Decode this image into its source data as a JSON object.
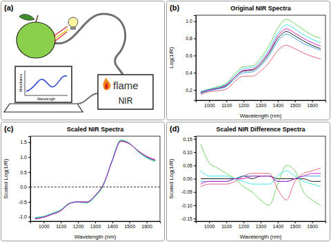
{
  "diagram": {
    "label": "(a)",
    "device_brand": "flame",
    "device_type": "NIR",
    "screen_y_label": "Absorbance",
    "screen_x_label": "Wavelength"
  },
  "chart_data": [
    {
      "type": "line",
      "panel_label": "(b)",
      "title": "Original NIR Spectra",
      "x_label": "Wavelength (nm)",
      "y_label": "Log(1/R)",
      "x": [
        950,
        1000,
        1050,
        1100,
        1150,
        1200,
        1250,
        1300,
        1350,
        1400,
        1450,
        1500,
        1550,
        1600,
        1650
      ],
      "xlim": [
        922,
        1678
      ],
      "xticks": [
        1000,
        1100,
        1200,
        1300,
        1400,
        1500,
        1600
      ],
      "ylim": [
        0.08,
        1.07
      ],
      "yticks": [
        0.2,
        0.4,
        0.6,
        0.8,
        {
          "value": 1,
          "label": "1.0"
        }
      ],
      "series": [
        {
          "color": "#000000",
          "values": [
            0.17,
            0.2,
            0.22,
            0.25,
            0.35,
            0.42,
            0.43,
            0.5,
            0.63,
            0.8,
            0.88,
            0.83,
            0.77,
            0.72,
            0.68
          ]
        },
        {
          "color": "#DF536B",
          "values": [
            0.15,
            0.18,
            0.19,
            0.21,
            0.3,
            0.36,
            0.36,
            0.42,
            0.52,
            0.66,
            0.72,
            0.68,
            0.63,
            0.59,
            0.56
          ]
        },
        {
          "color": "#61D04F",
          "values": [
            0.18,
            0.21,
            0.24,
            0.28,
            0.39,
            0.47,
            0.48,
            0.57,
            0.72,
            0.92,
            1.02,
            0.97,
            0.9,
            0.84,
            0.8
          ]
        },
        {
          "color": "#2297E6",
          "values": [
            0.16,
            0.19,
            0.21,
            0.24,
            0.33,
            0.4,
            0.41,
            0.48,
            0.6,
            0.77,
            0.85,
            0.8,
            0.74,
            0.7,
            0.66
          ]
        },
        {
          "color": "#28E2E5",
          "values": [
            0.18,
            0.21,
            0.23,
            0.27,
            0.37,
            0.45,
            0.46,
            0.54,
            0.68,
            0.86,
            0.96,
            0.91,
            0.84,
            0.79,
            0.75
          ]
        },
        {
          "color": "#CD0BBC",
          "values": [
            0.17,
            0.2,
            0.22,
            0.26,
            0.35,
            0.43,
            0.44,
            0.52,
            0.65,
            0.83,
            0.91,
            0.86,
            0.8,
            0.75,
            0.71
          ]
        }
      ]
    },
    {
      "type": "line",
      "panel_label": "(c)",
      "title": "Scaled NIR Spectra",
      "x_label": "Wavelength (nm)",
      "y_label": "Scaled Log(1/R)",
      "x": [
        950,
        1000,
        1050,
        1100,
        1150,
        1200,
        1250,
        1300,
        1350,
        1400,
        1450,
        1500,
        1550,
        1600,
        1650
      ],
      "xlim": [
        922,
        1678
      ],
      "xticks": [
        1000,
        1100,
        1200,
        1300,
        1400,
        1500,
        1600
      ],
      "ylim": [
        -1.15,
        1.7
      ],
      "yticks": [
        {
          "value": -1,
          "label": "-1.0"
        },
        -0.5,
        {
          "value": 0,
          "label": "0.0"
        },
        0.5,
        {
          "value": 1,
          "label": "1.0"
        },
        1.5
      ],
      "hline": 0,
      "series": [
        {
          "color": "#000000",
          "values": [
            -1.05,
            -1.0,
            -0.9,
            -0.78,
            -0.55,
            -0.5,
            -0.52,
            -0.3,
            0.1,
            0.9,
            1.55,
            1.45,
            1.2,
            1.0,
            0.88
          ]
        },
        {
          "color": "#DF536B",
          "values": [
            -1.08,
            -1.02,
            -0.92,
            -0.8,
            -0.56,
            -0.49,
            -0.5,
            -0.28,
            0.12,
            0.88,
            1.52,
            1.44,
            1.22,
            1.03,
            0.92
          ]
        },
        {
          "color": "#61D04F",
          "values": [
            -1.02,
            -0.98,
            -0.88,
            -0.76,
            -0.54,
            -0.51,
            -0.54,
            -0.33,
            0.07,
            0.92,
            1.58,
            1.47,
            1.18,
            0.97,
            0.85
          ]
        },
        {
          "color": "#2297E6",
          "values": [
            -1.06,
            -1.01,
            -0.91,
            -0.79,
            -0.55,
            -0.5,
            -0.51,
            -0.29,
            0.11,
            0.89,
            1.54,
            1.45,
            1.21,
            1.01,
            0.89
          ]
        },
        {
          "color": "#28E2E5",
          "values": [
            -1.03,
            -0.99,
            -0.89,
            -0.77,
            -0.55,
            -0.51,
            -0.53,
            -0.31,
            0.09,
            0.91,
            1.56,
            1.46,
            1.19,
            0.99,
            0.87
          ]
        },
        {
          "color": "#CD0BBC",
          "values": [
            -1.07,
            -1.01,
            -0.91,
            -0.79,
            -0.56,
            -0.5,
            -0.51,
            -0.29,
            0.11,
            0.89,
            1.54,
            1.45,
            1.21,
            1.02,
            0.9
          ]
        }
      ]
    },
    {
      "type": "line",
      "panel_label": "(d)",
      "title": "Scaled NIR Difference Spectra",
      "x_label": "Wavelength (nm)",
      "y_label": "Scaled Log(1/R)",
      "x": [
        950,
        1000,
        1050,
        1100,
        1150,
        1200,
        1250,
        1300,
        1350,
        1400,
        1450,
        1500,
        1550,
        1600,
        1650
      ],
      "xlim": [
        922,
        1678
      ],
      "xticks": [
        1000,
        1100,
        1200,
        1300,
        1400,
        1500,
        1600
      ],
      "ylim": [
        -0.16,
        0.16
      ],
      "yticks": [
        -0.15,
        {
          "value": -0.1,
          "label": "-0.10"
        },
        -0.05,
        {
          "value": 0,
          "label": "0.00"
        },
        0.05,
        {
          "value": 0.1,
          "label": "0.10"
        },
        0.15
      ],
      "series": [
        {
          "color": "#000000",
          "values": [
            0.0,
            0.0,
            0.0,
            0.0,
            0.0,
            0.01,
            0.0,
            0.01,
            0.01,
            0.0,
            0.0,
            0.0,
            0.0,
            -0.01,
            -0.01
          ]
        },
        {
          "color": "#DF536B",
          "values": [
            -0.03,
            -0.02,
            -0.02,
            -0.02,
            -0.01,
            0.01,
            0.02,
            0.02,
            0.02,
            -0.04,
            -0.08,
            -0.01,
            0.02,
            0.03,
            0.04
          ]
        },
        {
          "color": "#61D04F",
          "values": [
            0.13,
            0.06,
            0.04,
            0.02,
            0.0,
            -0.03,
            -0.05,
            -0.08,
            -0.1,
            -0.02,
            0.05,
            0.03,
            -0.05,
            -0.08,
            -0.1
          ]
        },
        {
          "color": "#2297E6",
          "values": [
            -0.01,
            -0.01,
            -0.01,
            -0.01,
            0.0,
            0.01,
            0.01,
            0.01,
            0.01,
            -0.01,
            -0.01,
            0.0,
            0.01,
            0.01,
            0.01
          ]
        },
        {
          "color": "#28E2E5",
          "values": [
            0.03,
            0.01,
            0.01,
            0.01,
            0.0,
            -0.01,
            -0.02,
            -0.02,
            -0.02,
            0.01,
            0.03,
            0.01,
            -0.01,
            -0.02,
            -0.03
          ]
        },
        {
          "color": "#CD0BBC",
          "values": [
            -0.02,
            -0.01,
            -0.01,
            -0.01,
            0.0,
            0.0,
            0.01,
            0.01,
            0.01,
            -0.01,
            -0.01,
            0.0,
            0.01,
            0.02,
            0.02
          ]
        }
      ]
    }
  ]
}
